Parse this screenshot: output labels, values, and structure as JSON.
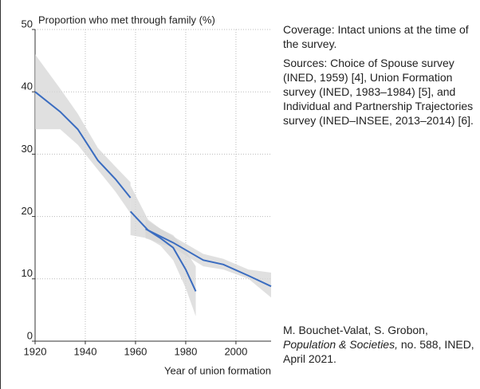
{
  "chart_data": {
    "type": "line",
    "title": "Proportion who met through family (%)",
    "x_label": "Year of union formation",
    "xlim": [
      1920,
      2014
    ],
    "xticks": [
      1920,
      1940,
      1960,
      1980,
      2000
    ],
    "ylim": [
      0,
      50
    ],
    "yticks": [
      0,
      10,
      20,
      30,
      40,
      50
    ],
    "grid": true,
    "band_color": "#d6d6d6",
    "series": [
      {
        "color": "#3a6cc0",
        "x": [
          1920,
          1930,
          1937,
          1945,
          1952,
          1958
        ],
        "values": [
          40,
          36.8,
          34,
          29,
          26,
          23
        ],
        "lower": [
          34,
          34,
          31.5,
          27.5,
          24,
          20.5
        ],
        "upper": [
          46,
          40.5,
          36.5,
          31,
          28,
          25.5
        ]
      },
      {
        "color": "#3a6cc0",
        "x": [
          1958,
          1965,
          1970,
          1975,
          1980,
          1984
        ],
        "values": [
          20.8,
          17.8,
          16.5,
          15,
          11.5,
          8
        ],
        "lower": [
          17,
          16.5,
          15.3,
          13,
          8.5,
          4
        ],
        "upper": [
          25,
          19.5,
          18,
          17,
          14.5,
          12
        ]
      },
      {
        "color": "#3a6cc0",
        "x": [
          1964,
          1975,
          1987,
          1995,
          2005,
          2014
        ],
        "values": [
          18,
          15.8,
          13,
          12.3,
          10.5,
          8.8
        ],
        "lower": [
          16.5,
          15,
          12,
          11.5,
          10,
          7
        ],
        "upper": [
          19.5,
          16.8,
          14,
          13.2,
          11.5,
          11
        ]
      }
    ]
  },
  "notes": {
    "coverage": "Coverage: Intact unions at the time of the survey.",
    "sources": "Sources: Choice of Spouse survey (INED, 1959) [4], Union Formation survey (INED, 1983–1984) [5], and Individual and Partnership Trajectories survey (INED–INSEE, 2013–2014) [6].",
    "citation": [
      "M. Bouchet-Valat, S. Grobon, ",
      "Population & Societies,",
      " no. 588, INED, April 2021."
    ]
  }
}
